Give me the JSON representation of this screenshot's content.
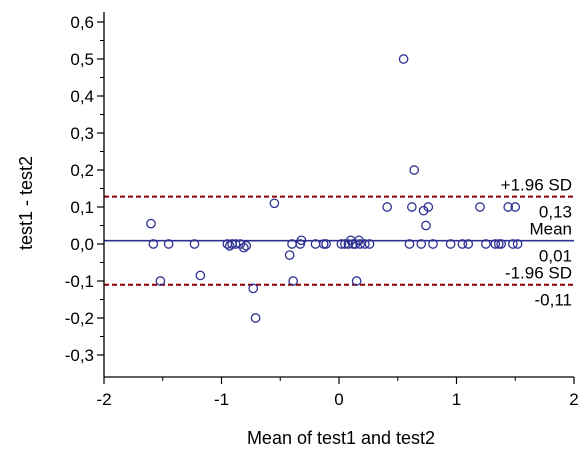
{
  "chart_data": {
    "type": "scatter",
    "title": "",
    "xlabel": "Mean of test1 and test2",
    "ylabel": "test1 - test2",
    "xlim": [
      -2,
      2
    ],
    "ylim": [
      -0.33,
      0.63
    ],
    "x_ticks": [
      -2,
      -1,
      0,
      1,
      2
    ],
    "x_tick_labels": [
      "-2",
      "-1",
      "0",
      "1",
      "2"
    ],
    "y_ticks": [
      -0.3,
      -0.2,
      -0.1,
      0.0,
      0.1,
      0.2,
      0.3,
      0.4,
      0.5,
      0.6
    ],
    "y_tick_labels": [
      "-0,3",
      "-0,2",
      "-0,1",
      "0,0",
      "0,1",
      "0,2",
      "0,3",
      "0,4",
      "0,5",
      "0,6"
    ],
    "grid": false,
    "colors": {
      "points": "#2e3192",
      "mean_line": "#2e3192",
      "limit_lines": "#8b0000"
    },
    "reference_lines": [
      {
        "label": "+1.96 SD",
        "value_label": "0,13",
        "y": 0.128,
        "style": "dashed",
        "color": "#8b0000"
      },
      {
        "label": "Mean",
        "value_label": "0,01",
        "y": 0.009,
        "style": "solid",
        "color": "#2e3192"
      },
      {
        "label": "-1.96 SD",
        "value_label": "-0,11",
        "y": -0.11,
        "style": "dashed",
        "color": "#8b0000"
      }
    ],
    "points": [
      {
        "x": -1.6,
        "y": 0.055
      },
      {
        "x": -1.58,
        "y": 0.0
      },
      {
        "x": -1.52,
        "y": -0.1
      },
      {
        "x": -1.45,
        "y": 0.0
      },
      {
        "x": -1.23,
        "y": 0.0
      },
      {
        "x": -1.18,
        "y": -0.085
      },
      {
        "x": -0.95,
        "y": 0.0
      },
      {
        "x": -0.93,
        "y": -0.005
      },
      {
        "x": -0.91,
        "y": 0.0
      },
      {
        "x": -0.88,
        "y": 0.0
      },
      {
        "x": -0.84,
        "y": 0.0
      },
      {
        "x": -0.81,
        "y": -0.01
      },
      {
        "x": -0.79,
        "y": -0.005
      },
      {
        "x": -0.73,
        "y": -0.12
      },
      {
        "x": -0.71,
        "y": -0.2
      },
      {
        "x": -0.55,
        "y": 0.11
      },
      {
        "x": -0.42,
        "y": -0.03
      },
      {
        "x": -0.4,
        "y": 0.0
      },
      {
        "x": -0.39,
        "y": -0.1
      },
      {
        "x": -0.33,
        "y": 0.0
      },
      {
        "x": -0.32,
        "y": 0.01
      },
      {
        "x": -0.2,
        "y": 0.0
      },
      {
        "x": -0.13,
        "y": 0.0
      },
      {
        "x": -0.11,
        "y": 0.0
      },
      {
        "x": 0.02,
        "y": 0.0
      },
      {
        "x": 0.05,
        "y": 0.0
      },
      {
        "x": 0.08,
        "y": 0.0
      },
      {
        "x": 0.1,
        "y": 0.01
      },
      {
        "x": 0.12,
        "y": 0.0
      },
      {
        "x": 0.14,
        "y": 0.0
      },
      {
        "x": 0.15,
        "y": -0.1
      },
      {
        "x": 0.17,
        "y": 0.01
      },
      {
        "x": 0.18,
        "y": 0.0
      },
      {
        "x": 0.22,
        "y": 0.0
      },
      {
        "x": 0.26,
        "y": 0.0
      },
      {
        "x": 0.41,
        "y": 0.1
      },
      {
        "x": 0.55,
        "y": 0.5
      },
      {
        "x": 0.6,
        "y": 0.0
      },
      {
        "x": 0.62,
        "y": 0.1
      },
      {
        "x": 0.64,
        "y": 0.2
      },
      {
        "x": 0.7,
        "y": 0.0
      },
      {
        "x": 0.72,
        "y": 0.09
      },
      {
        "x": 0.74,
        "y": 0.05
      },
      {
        "x": 0.76,
        "y": 0.1
      },
      {
        "x": 0.8,
        "y": 0.0
      },
      {
        "x": 0.95,
        "y": 0.0
      },
      {
        "x": 1.05,
        "y": 0.0
      },
      {
        "x": 1.1,
        "y": 0.0
      },
      {
        "x": 1.2,
        "y": 0.1
      },
      {
        "x": 1.25,
        "y": 0.0
      },
      {
        "x": 1.33,
        "y": 0.0
      },
      {
        "x": 1.36,
        "y": 0.0
      },
      {
        "x": 1.38,
        "y": 0.0
      },
      {
        "x": 1.44,
        "y": 0.1
      },
      {
        "x": 1.48,
        "y": 0.0
      },
      {
        "x": 1.5,
        "y": 0.1
      },
      {
        "x": 1.52,
        "y": 0.0
      }
    ]
  }
}
